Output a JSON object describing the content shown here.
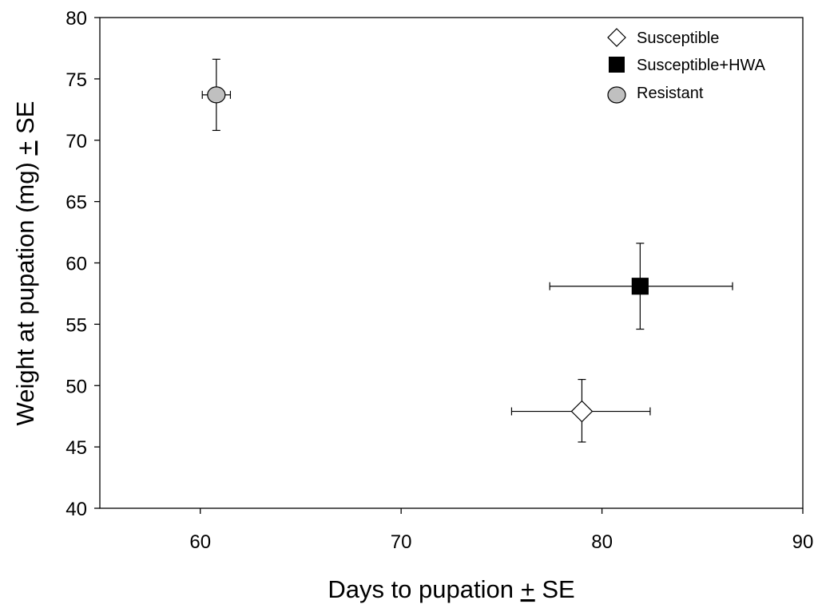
{
  "chart_data": {
    "type": "scatter",
    "title": "",
    "xlabel": "Days to pupation ± SE",
    "ylabel": "Weight at pupation (mg) ± SE",
    "xlabel_parts": [
      "Days to pupation ",
      "+",
      " SE"
    ],
    "ylabel_parts": [
      "Weight at pupation (mg) ",
      "+",
      " SE"
    ],
    "xlim": [
      55,
      90
    ],
    "ylim": [
      40,
      80
    ],
    "xticks": [
      60,
      70,
      80,
      90
    ],
    "yticks": [
      40,
      45,
      50,
      55,
      60,
      65,
      70,
      75,
      80
    ],
    "grid": false,
    "legend_position": "top-right",
    "series": [
      {
        "name": "Susceptible",
        "marker": "diamond",
        "fill": "#ffffff",
        "stroke": "#000000",
        "x": 79.0,
        "y": 47.9,
        "x_err": [
          3.5,
          3.4
        ],
        "y_err": [
          2.5,
          2.6
        ]
      },
      {
        "name": "Susceptible+HWA",
        "marker": "square",
        "fill": "#000000",
        "stroke": "#000000",
        "x": 81.9,
        "y": 58.1,
        "x_err": [
          4.5,
          4.6
        ],
        "y_err": [
          3.5,
          3.5
        ]
      },
      {
        "name": "Resistant",
        "marker": "circle",
        "fill": "#c0c0c0",
        "stroke": "#000000",
        "x": 60.8,
        "y": 73.7,
        "x_err": [
          0.7,
          0.7
        ],
        "y_err": [
          2.9,
          2.9
        ]
      }
    ]
  }
}
